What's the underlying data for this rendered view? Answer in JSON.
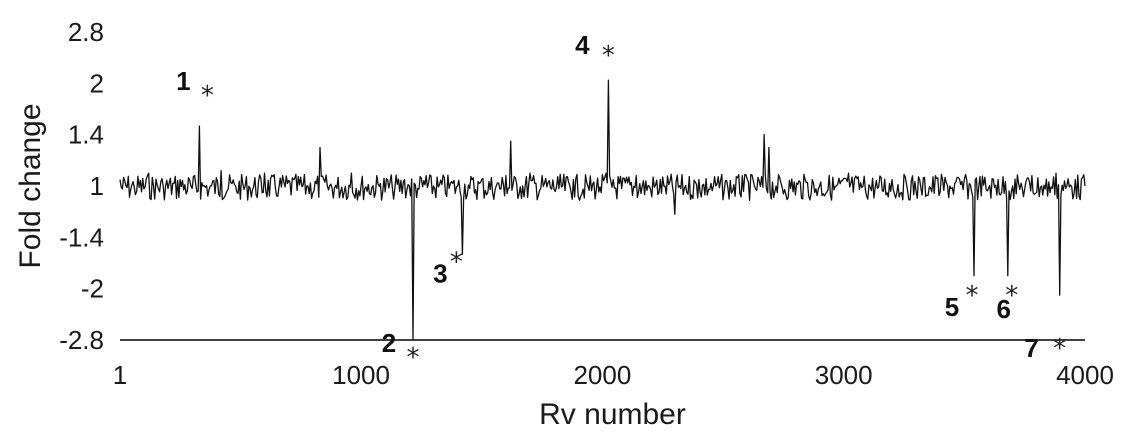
{
  "chart_data": {
    "type": "line",
    "title": "",
    "xlabel": "Rv number",
    "ylabel": "Fold change",
    "x_tick_labels": [
      "1",
      "1000",
      "2000",
      "3000",
      "4000"
    ],
    "x_tick_values": [
      1,
      1000,
      2000,
      3000,
      4000
    ],
    "y_tick_labels": [
      "2.8",
      "2",
      "1.4",
      "1",
      "-1.4",
      "-2",
      "-2.8"
    ],
    "xlim": [
      1,
      4000
    ],
    "grid": false,
    "legend": "none",
    "series": [
      {
        "x": [
          1,
          60,
          120,
          180,
          250,
          300,
          330,
          345,
          370,
          420,
          480,
          540,
          600,
          660,
          720,
          780,
          830,
          860,
          900,
          960,
          1020,
          1080,
          1130,
          1180,
          1200,
          1215,
          1235,
          1270,
          1320,
          1370,
          1400,
          1420,
          1450,
          1500,
          1560,
          1600,
          1620,
          1660,
          1700,
          1760,
          1820,
          1880,
          1940,
          1990,
          2015,
          2025,
          2045,
          2080,
          2140,
          2200,
          2260,
          2300,
          2340,
          2400,
          2460,
          2520,
          2580,
          2630,
          2670,
          2690,
          2720,
          2780,
          2840,
          2900,
          2960,
          3020,
          3080,
          3140,
          3200,
          3260,
          3320,
          3380,
          3440,
          3500,
          3540,
          3560,
          3600,
          3640,
          3680,
          3700,
          3740,
          3780,
          3820,
          3860,
          3880,
          3895,
          3920,
          3960,
          4000
        ],
        "y": [
          1.05,
          0.98,
          1.1,
          1.0,
          1.05,
          0.95,
          1.5,
          1.0,
          0.92,
          1.12,
          1.0,
          0.95,
          1.1,
          0.98,
          1.05,
          1.0,
          1.3,
          1.0,
          0.95,
          1.1,
          0.98,
          1.02,
          0.95,
          1.05,
          1.0,
          -2.8,
          0.95,
          1.08,
          0.98,
          1.02,
          1.0,
          -1.6,
          0.95,
          1.05,
          1.0,
          1.08,
          1.35,
          0.98,
          1.1,
          1.02,
          0.95,
          1.05,
          1.0,
          0.98,
          1.1,
          2.05,
          1.05,
          0.95,
          1.08,
          0.92,
          1.0,
          -1.3,
          0.95,
          1.05,
          1.0,
          0.96,
          1.08,
          1.0,
          1.4,
          1.3,
          1.0,
          0.95,
          1.05,
          1.0,
          0.92,
          1.1,
          1.0,
          0.95,
          1.05,
          1.02,
          0.96,
          1.08,
          1.0,
          1.05,
          -1.85,
          1.0,
          0.95,
          1.05,
          -1.85,
          1.0,
          0.95,
          1.08,
          1.0,
          0.98,
          1.1,
          -2.1,
          0.95,
          1.05,
          1.0
        ]
      }
    ],
    "annotations": [
      {
        "label": "1",
        "x": 330,
        "y": 1.5
      },
      {
        "label": "2",
        "x": 1215,
        "y": -2.8
      },
      {
        "label": "3",
        "x": 1420,
        "y": -1.6
      },
      {
        "label": "4",
        "x": 2025,
        "y": 2.05
      },
      {
        "label": "5",
        "x": 3540,
        "y": -1.85
      },
      {
        "label": "6",
        "x": 3680,
        "y": -1.85
      },
      {
        "label": "7",
        "x": 3895,
        "y": -2.1
      }
    ],
    "annotation_marker": "*"
  }
}
